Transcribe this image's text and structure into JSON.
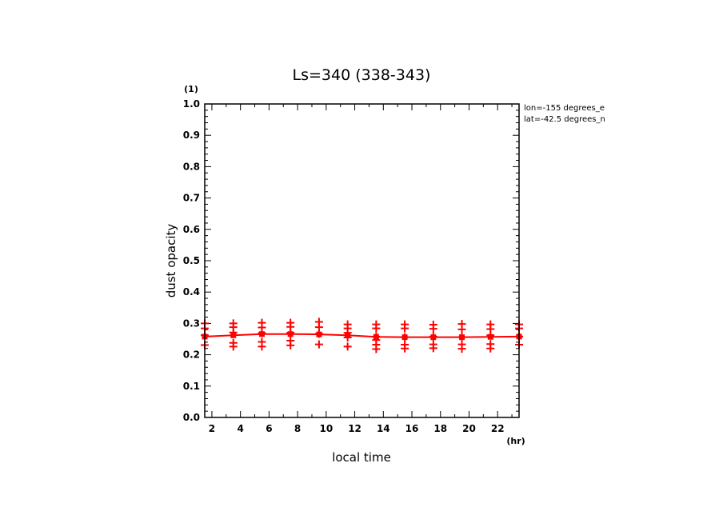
{
  "chart_data": {
    "type": "line",
    "title": "Ls=340 (338-343)",
    "xlabel": "local time",
    "ylabel": "dust opacity",
    "x_unit": "(hr)",
    "y_unit": "(1)",
    "xlim": [
      1.5,
      23.5
    ],
    "ylim": [
      0.0,
      1.0
    ],
    "xticks": [
      "2",
      "4",
      "6",
      "8",
      "10",
      "12",
      "14",
      "16",
      "18",
      "20",
      "22"
    ],
    "yticks": [
      "0.0",
      "0.1",
      "0.2",
      "0.3",
      "0.4",
      "0.5",
      "0.6",
      "0.7",
      "0.8",
      "0.9",
      "1.0"
    ],
    "annotations": [
      "lon=-155 degrees_e",
      "lat=-42.5 degrees_n"
    ],
    "color": "#ff0000",
    "mean": {
      "x": [
        1.5,
        3.5,
        5.5,
        7.5,
        9.5,
        11.5,
        13.5,
        15.5,
        17.5,
        19.5,
        21.5,
        23.5
      ],
      "y": [
        0.258,
        0.262,
        0.266,
        0.266,
        0.265,
        0.262,
        0.257,
        0.256,
        0.256,
        0.256,
        0.257,
        0.258
      ]
    },
    "samples": [
      {
        "x": 1.5,
        "y": [
          0.231,
          0.262,
          0.284,
          0.3
        ]
      },
      {
        "x": 3.5,
        "y": [
          0.226,
          0.238,
          0.271,
          0.288,
          0.3
        ]
      },
      {
        "x": 5.5,
        "y": [
          0.226,
          0.241,
          0.269,
          0.287,
          0.302
        ]
      },
      {
        "x": 7.5,
        "y": [
          0.23,
          0.245,
          0.27,
          0.289,
          0.302
        ]
      },
      {
        "x": 9.5,
        "y": [
          0.233,
          0.267,
          0.288,
          0.305
        ]
      },
      {
        "x": 11.5,
        "y": [
          0.226,
          0.255,
          0.27,
          0.284,
          0.297
        ]
      },
      {
        "x": 13.5,
        "y": [
          0.218,
          0.232,
          0.247,
          0.258,
          0.284,
          0.297
        ]
      },
      {
        "x": 15.5,
        "y": [
          0.22,
          0.232,
          0.256,
          0.284,
          0.297
        ]
      },
      {
        "x": 17.5,
        "y": [
          0.221,
          0.233,
          0.258,
          0.283,
          0.296
        ]
      },
      {
        "x": 19.5,
        "y": [
          0.219,
          0.233,
          0.256,
          0.281,
          0.298
        ]
      },
      {
        "x": 21.5,
        "y": [
          0.22,
          0.234,
          0.262,
          0.282,
          0.297
        ]
      },
      {
        "x": 23.5,
        "y": [
          0.232,
          0.258,
          0.284,
          0.297
        ]
      }
    ]
  }
}
